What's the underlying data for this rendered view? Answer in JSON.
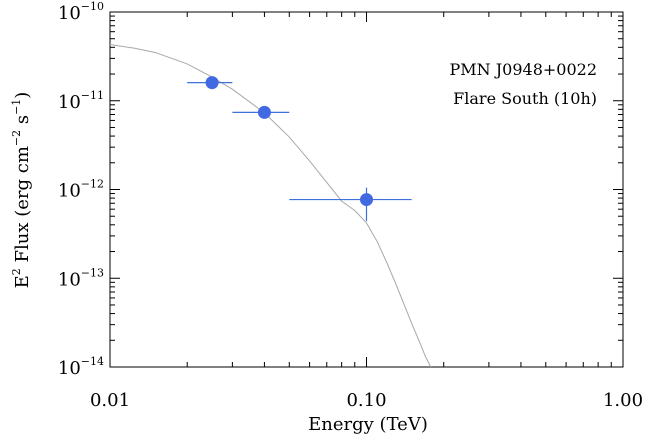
{
  "chart_data": {
    "type": "scatter",
    "xlabel": "Energy (TeV)",
    "ylabel_parts": {
      "E": "E",
      "E_sup": "2",
      "flux": " Flux (erg cm",
      "cm_sup": "−2",
      "s": " s",
      "s_sup": "−1",
      "close": ")"
    },
    "x_scale": "log",
    "y_scale": "log",
    "xlim": [
      0.01,
      1.0
    ],
    "ylim": [
      1e-14,
      1e-10
    ],
    "grid": false,
    "x_ticks": [
      {
        "value": 0.01,
        "label": "0.01"
      },
      {
        "value": 0.1,
        "label": "0.10"
      },
      {
        "value": 1.0,
        "label": "1.00"
      }
    ],
    "y_ticks": [
      {
        "value": 1e-14,
        "mantissa": "10",
        "exponent": "−14"
      },
      {
        "value": 1e-13,
        "mantissa": "10",
        "exponent": "−13"
      },
      {
        "value": 1e-12,
        "mantissa": "10",
        "exponent": "−12"
      },
      {
        "value": 1e-11,
        "mantissa": "10",
        "exponent": "−11"
      },
      {
        "value": 1e-10,
        "mantissa": "10",
        "exponent": "−10"
      }
    ],
    "annotations": [
      "PMN J0948+0022",
      "Flare South (10h)"
    ],
    "points": [
      {
        "x": 0.025,
        "y": 1.6e-11,
        "x_low": 0.02,
        "x_high": 0.03,
        "y_low": 1.35e-11,
        "y_high": 1.85e-11
      },
      {
        "x": 0.04,
        "y": 7.4e-12,
        "x_low": 0.03,
        "x_high": 0.05,
        "y_low": 6.8e-12,
        "y_high": 8.1e-12
      },
      {
        "x": 0.1,
        "y": 7.7e-13,
        "x_low": 0.05,
        "x_high": 0.15,
        "y_low": 4.4e-13,
        "y_high": 1.05e-12
      }
    ],
    "model_curve": {
      "x": [
        0.01,
        0.0125,
        0.015,
        0.02,
        0.025,
        0.03,
        0.04,
        0.05,
        0.06,
        0.07,
        0.08,
        0.09,
        0.1,
        0.11,
        0.12,
        0.13,
        0.14,
        0.15,
        0.16,
        0.17,
        0.178
      ],
      "y": [
        4.3e-11,
        3.9e-11,
        3.5e-11,
        2.6e-11,
        1.85e-11,
        1.35e-11,
        7.3e-12,
        3.9e-12,
        2.1e-12,
        1.2e-12,
        7.4e-13,
        5.8e-13,
        4.2e-13,
        2.6e-13,
        1.5e-13,
        8.7e-14,
        5.1e-14,
        3.1e-14,
        2e-14,
        1.3e-14,
        1e-14
      ]
    },
    "colors": {
      "point": "#4169e1",
      "errorbar": "#3f6fd8",
      "curve": "#a8a8a8",
      "axes": "#000000"
    }
  }
}
